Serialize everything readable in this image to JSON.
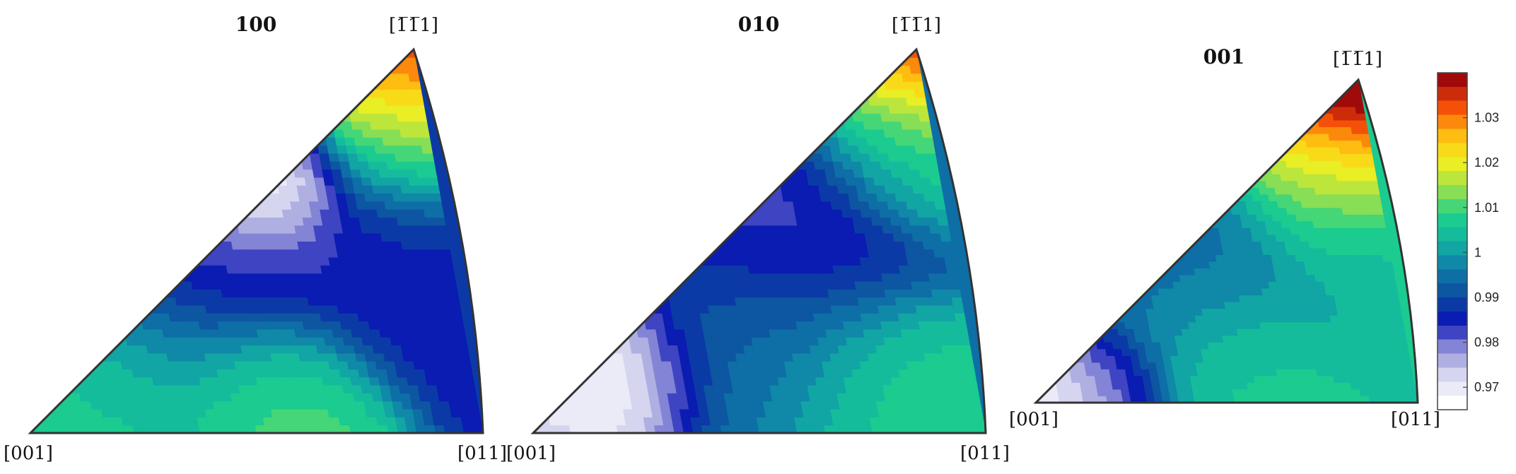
{
  "chart_data": [
    {
      "type": "heatmap",
      "title": "100",
      "corners": {
        "bottom_left": "[001]",
        "bottom_right": "[011]",
        "top": "[1̅1̅1]"
      },
      "blobs": [
        {
          "u": 0.2,
          "v": 0.18,
          "value": 1.008,
          "spread": 0.16
        },
        {
          "u": 0.56,
          "v": 0.1,
          "value": 1.012,
          "spread": 0.12
        },
        {
          "u": 0.6,
          "v": 0.68,
          "value": 0.964,
          "spread": 0.1
        },
        {
          "u": 0.4,
          "v": 0.45,
          "value": 0.982,
          "spread": 0.2
        },
        {
          "u": 0.93,
          "v": 0.42,
          "value": 0.985,
          "spread": 0.16
        },
        {
          "u": 1.0,
          "v": 1.0,
          "value": 1.04,
          "spread": 0.13
        },
        {
          "u": 0.97,
          "v": 0.8,
          "value": 1.012,
          "spread": 0.14
        }
      ]
    },
    {
      "type": "heatmap",
      "title": "010",
      "corners": {
        "bottom_left": "[001]",
        "bottom_right": "[011]",
        "top": "[1̅1̅1]"
      },
      "blobs": [
        {
          "u": 0.2,
          "v": 0.18,
          "value": 0.965,
          "spread": 0.11
        },
        {
          "u": 0.08,
          "v": 0.02,
          "value": 0.972,
          "spread": 0.08
        },
        {
          "u": 0.55,
          "v": 0.55,
          "value": 0.982,
          "spread": 0.2
        },
        {
          "u": 0.82,
          "v": 0.1,
          "value": 1.008,
          "spread": 0.14
        },
        {
          "u": 0.5,
          "v": 0.22,
          "value": 0.996,
          "spread": 0.16
        },
        {
          "u": 1.0,
          "v": 1.0,
          "value": 1.04,
          "spread": 0.12
        },
        {
          "u": 0.95,
          "v": 0.8,
          "value": 1.008,
          "spread": 0.14
        }
      ]
    },
    {
      "type": "heatmap",
      "title": "001",
      "corners": {
        "bottom_left": "[001]",
        "bottom_right": "[011]",
        "top": "[1̅1̅1]"
      },
      "blobs": [
        {
          "u": 0.06,
          "v": 0.04,
          "value": 0.965,
          "spread": 0.09
        },
        {
          "u": 0.17,
          "v": 0.08,
          "value": 0.982,
          "spread": 0.1
        },
        {
          "u": 0.58,
          "v": 0.12,
          "value": 1.008,
          "spread": 0.14
        },
        {
          "u": 0.45,
          "v": 0.4,
          "value": 0.995,
          "spread": 0.2
        },
        {
          "u": 1.0,
          "v": 1.0,
          "value": 1.045,
          "spread": 0.16
        },
        {
          "u": 0.92,
          "v": 0.7,
          "value": 1.018,
          "spread": 0.15
        },
        {
          "u": 0.95,
          "v": 0.45,
          "value": 1.003,
          "spread": 0.14
        }
      ]
    }
  ],
  "colorbar": {
    "min": 0.965,
    "max": 1.04,
    "ticks": [
      "0.97",
      "0.98",
      "0.99",
      "1",
      "1.01",
      "1.02",
      "1.03"
    ],
    "tick_values": [
      0.97,
      0.98,
      0.99,
      1.0,
      1.01,
      1.02,
      1.03
    ],
    "colors": [
      "#ffffff",
      "#d8d8f0",
      "#8f8fd8",
      "#0a14b4",
      "#0c4ea0",
      "#0f7ca8",
      "#12b4a2",
      "#1ed28a",
      "#9ee04a",
      "#f4f020",
      "#ffb80f",
      "#f54b08",
      "#a00a0a"
    ]
  }
}
